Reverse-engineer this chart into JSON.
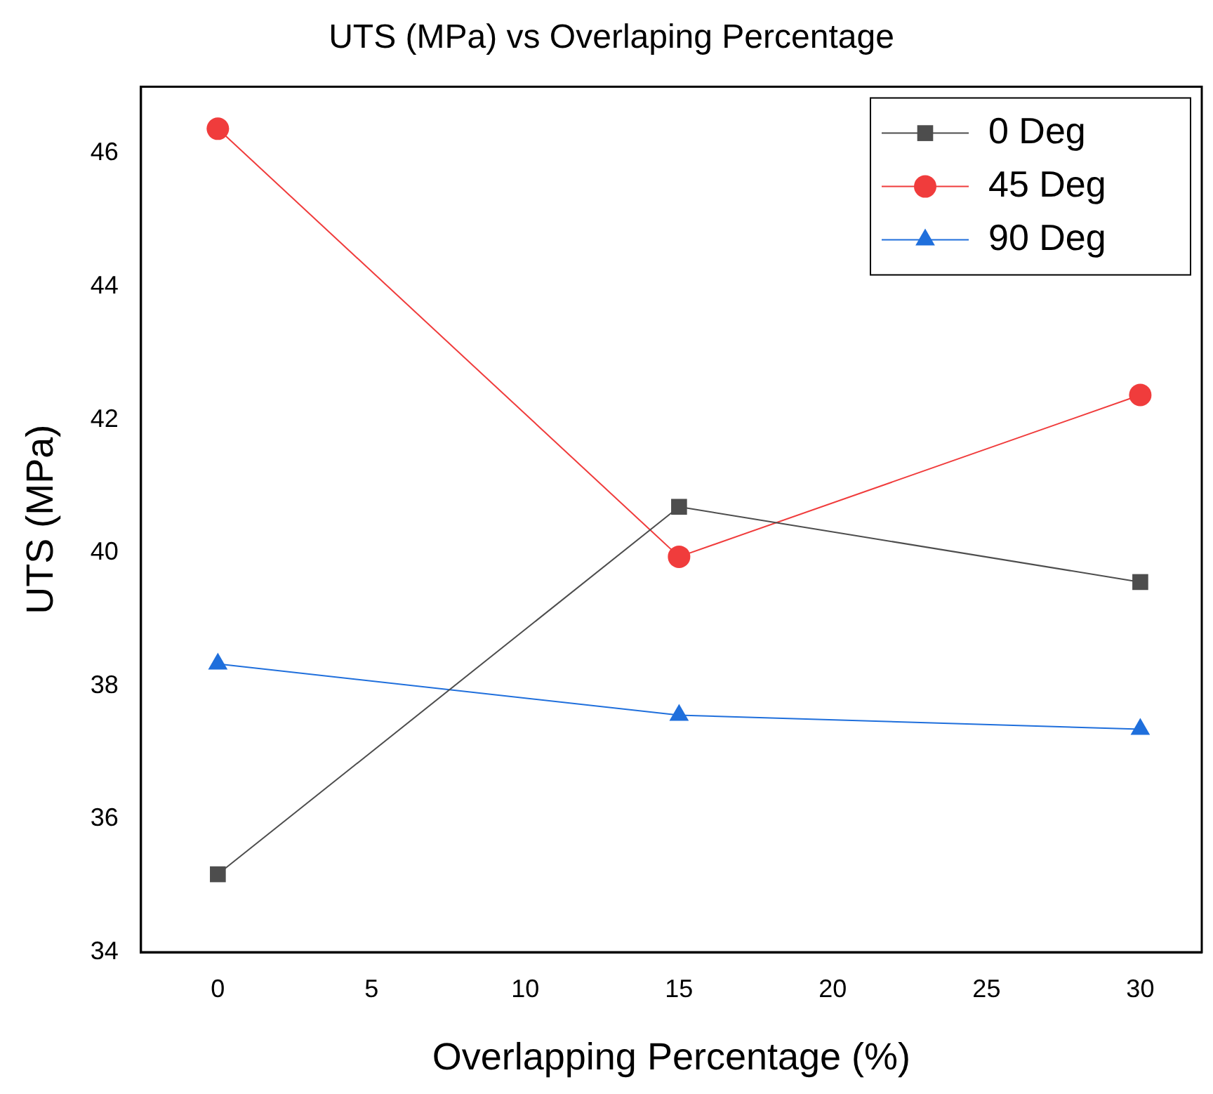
{
  "chart_data": {
    "type": "line",
    "title": "UTS (MPa) vs Overlaping Percentage",
    "xlabel": "Overlapping Percentage (%)",
    "ylabel": "UTS (MPa)",
    "x": [
      0,
      15,
      30
    ],
    "series": [
      {
        "name": "0 Deg",
        "color": "#4d4d4d",
        "marker": "square",
        "values": [
          35.17,
          40.69,
          39.56
        ]
      },
      {
        "name": "45 Deg",
        "color": "#f03c3c",
        "marker": "circle",
        "values": [
          46.37,
          39.94,
          42.37
        ]
      },
      {
        "name": "90 Deg",
        "color": "#1f6fdc",
        "marker": "triangle",
        "values": [
          38.33,
          37.56,
          37.35
        ]
      }
    ],
    "xlim": [
      -2.5,
      32
    ],
    "xticks": [
      0,
      5,
      10,
      15,
      20,
      25,
      30
    ],
    "ylim": [
      34,
      47
    ],
    "yticks": [
      34,
      36,
      38,
      40,
      42,
      44,
      46
    ],
    "grid": false,
    "legend": "top right",
    "line_style": "solid"
  }
}
